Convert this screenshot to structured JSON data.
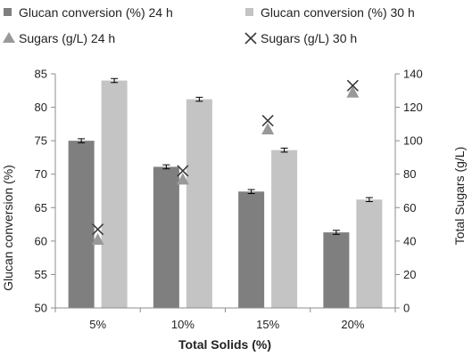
{
  "chart_data": {
    "type": "bar",
    "categories": [
      "5%",
      "10%",
      "15%",
      "20%"
    ],
    "xlabel": "Total Solids (%)",
    "ylabel": "Glucan conversion (%)",
    "y2label": "Total Sugars (g/L)",
    "ylim": [
      50,
      85
    ],
    "yticks": [
      50,
      55,
      60,
      65,
      70,
      75,
      80,
      85
    ],
    "y2lim": [
      0,
      140
    ],
    "y2ticks": [
      0,
      20,
      40,
      60,
      80,
      100,
      120,
      140
    ],
    "grid": false,
    "legend_position": "top",
    "series": [
      {
        "name": "Glucan conversion (%) 24 h",
        "type": "bar",
        "axis": "left",
        "color": "#7f7f7f",
        "values": [
          75.0,
          71.1,
          67.4,
          61.3
        ],
        "errors": [
          0.3,
          0.3,
          0.3,
          0.3
        ]
      },
      {
        "name": "Glucan conversion (%) 30 h",
        "type": "bar",
        "axis": "left",
        "color": "#c4c4c4",
        "values": [
          84.0,
          81.2,
          73.6,
          66.2
        ],
        "errors": [
          0.3,
          0.3,
          0.3,
          0.3
        ]
      },
      {
        "name": "Sugars (g/L) 24 h",
        "type": "scatter",
        "marker": "triangle",
        "axis": "right",
        "color": "#999999",
        "values": [
          41,
          77,
          107,
          129
        ]
      },
      {
        "name": "Sugars (g/L) 30 h",
        "type": "scatter",
        "marker": "x",
        "axis": "right",
        "color": "#3a3a3a",
        "values": [
          47,
          82,
          112,
          133
        ]
      }
    ]
  }
}
